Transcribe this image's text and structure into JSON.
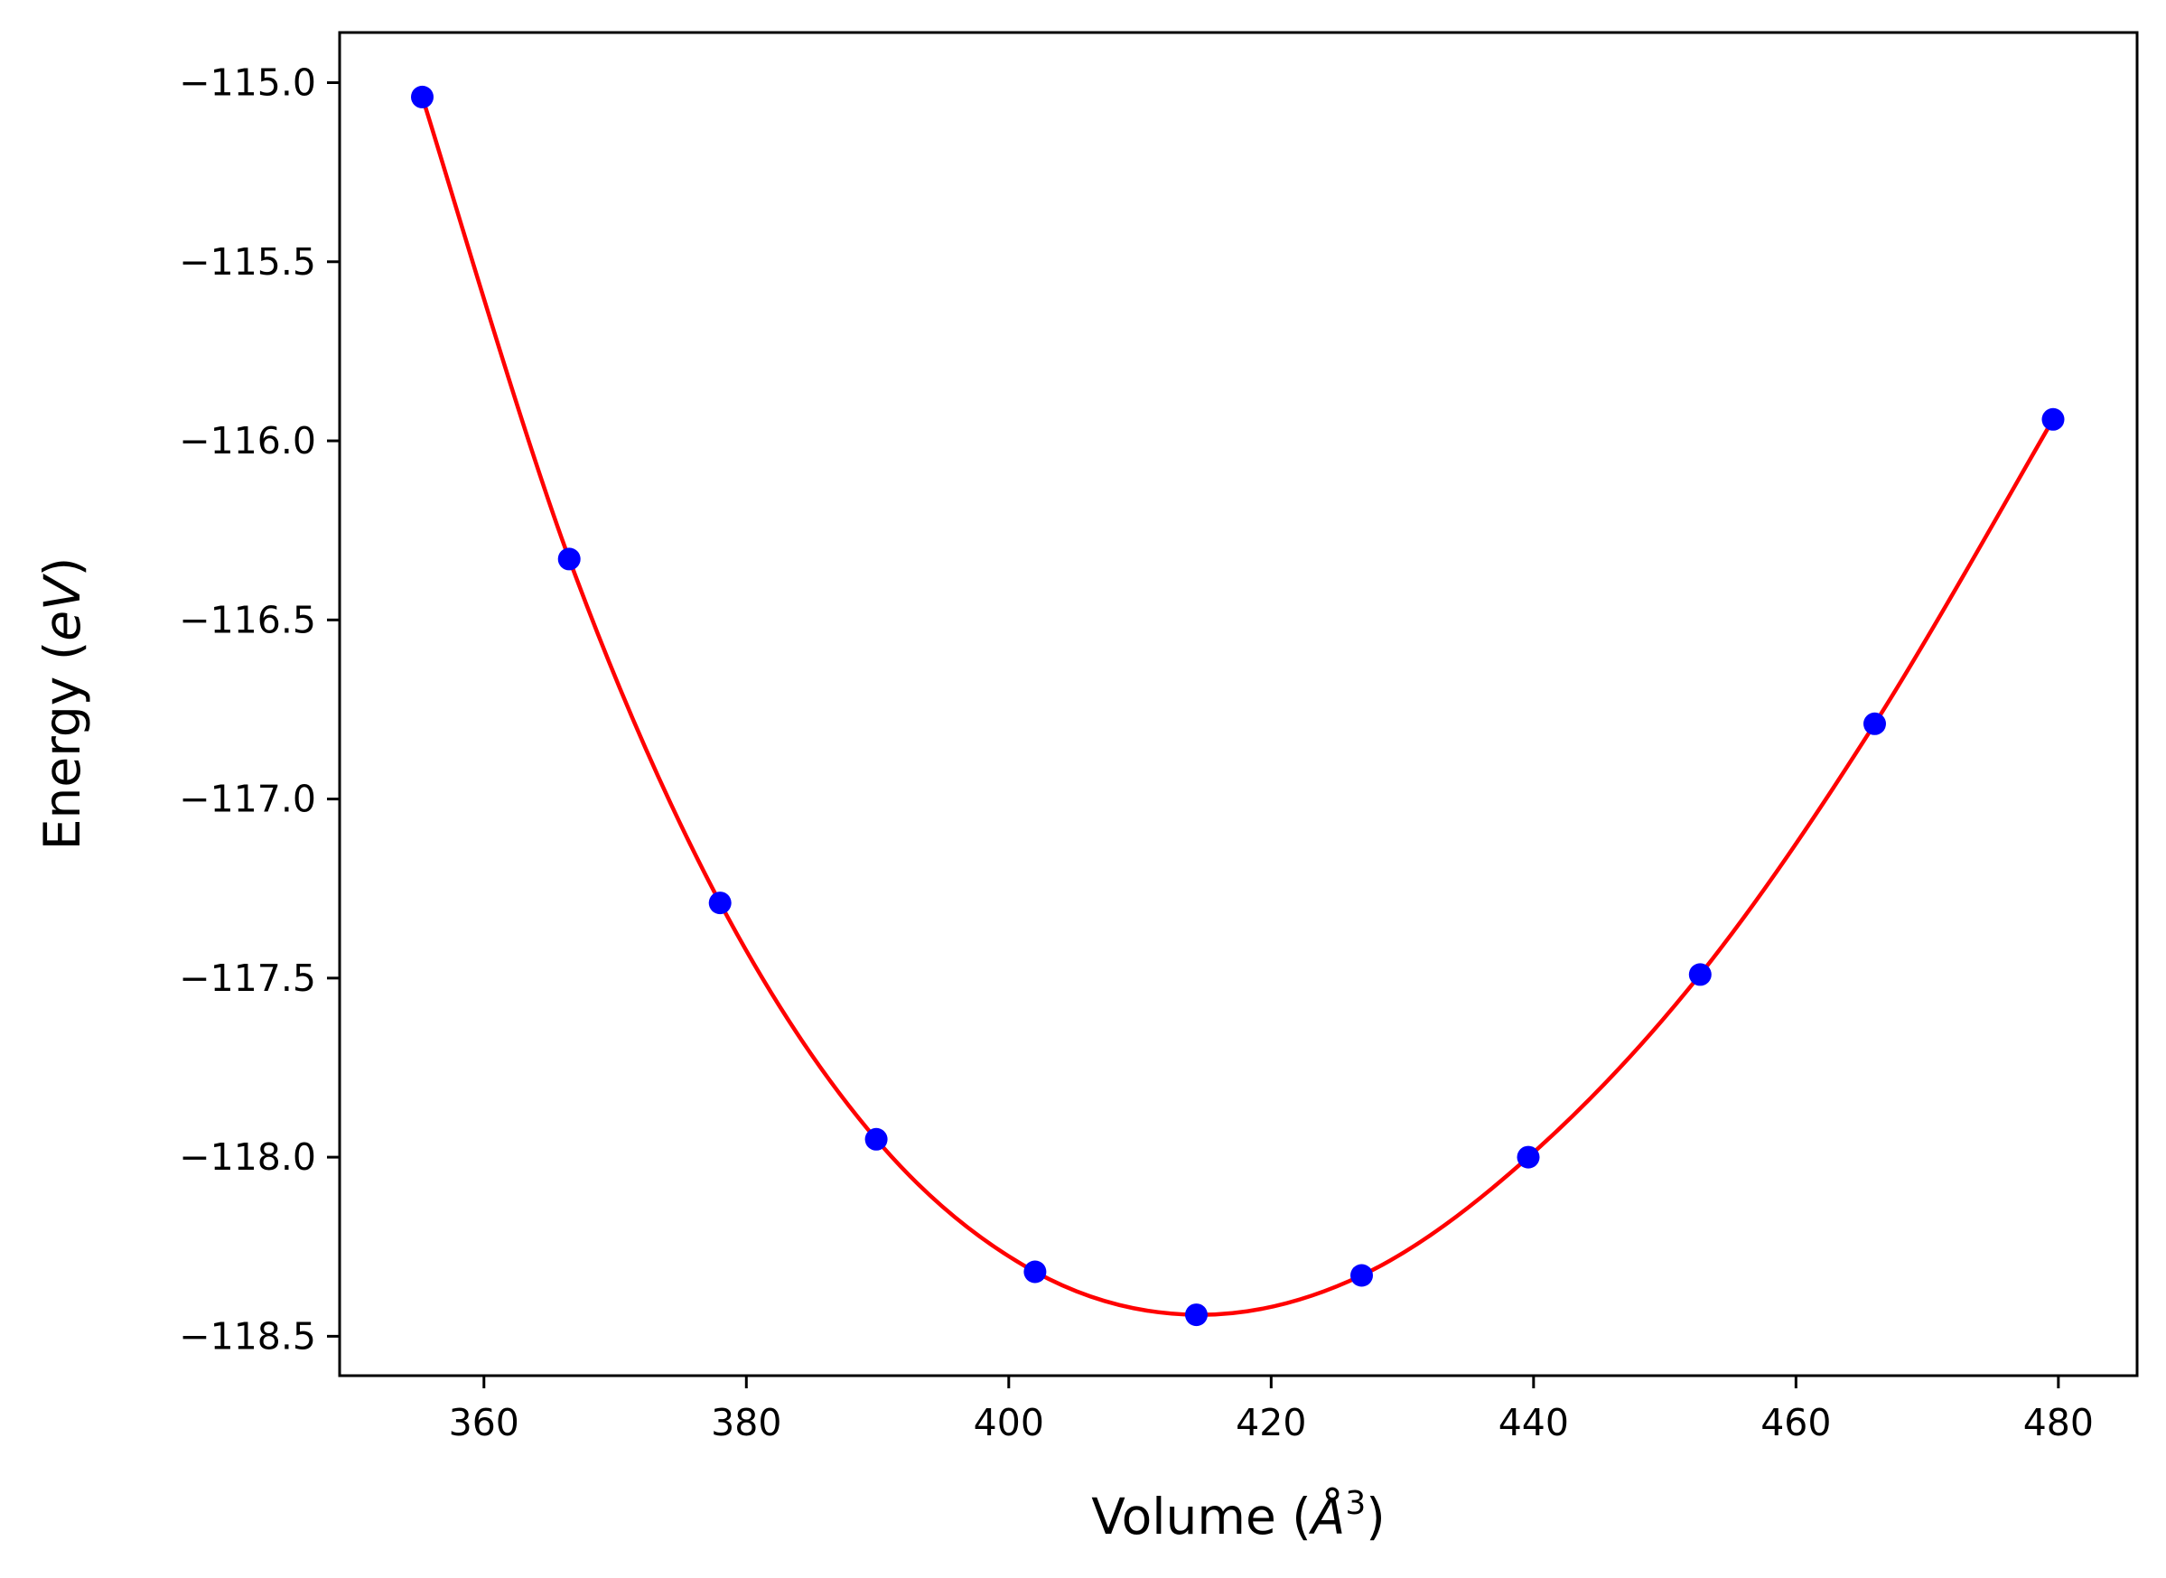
{
  "chart_data": {
    "type": "scatter",
    "title": "",
    "xlabel": {
      "main": "Volume (",
      "symbol": "Å",
      "power": "3",
      "close": ")"
    },
    "ylabel": {
      "main": "Energy (",
      "unit": "eV",
      "close": ")"
    },
    "xlim": [
      349,
      486
    ],
    "ylim": [
      -118.61,
      -114.86
    ],
    "xticks": [
      360,
      380,
      400,
      420,
      440,
      460,
      480
    ],
    "xtick_labels": [
      "360",
      "380",
      "400",
      "420",
      "440",
      "460",
      "480"
    ],
    "yticks": [
      -115.0,
      -115.5,
      -116.0,
      -116.5,
      -117.0,
      -117.5,
      -118.0,
      -118.5
    ],
    "ytick_labels": [
      "−115.0",
      "−115.5",
      "−116.0",
      "−116.5",
      "−117.0",
      "−117.5",
      "−118.0",
      "−118.5"
    ],
    "grid": false,
    "series": [
      {
        "kind": "points",
        "color": "#0000ff",
        "x": [
          355.3,
          366.5,
          378.0,
          389.9,
          402.0,
          414.3,
          426.9,
          439.6,
          452.7,
          466.0,
          479.6
        ],
        "y": [
          -115.04,
          -116.33,
          -117.29,
          -117.95,
          -118.32,
          -118.44,
          -118.33,
          -118.0,
          -117.49,
          -116.79,
          -115.94
        ]
      },
      {
        "kind": "fit-curve",
        "color": "#ff0000"
      }
    ]
  }
}
